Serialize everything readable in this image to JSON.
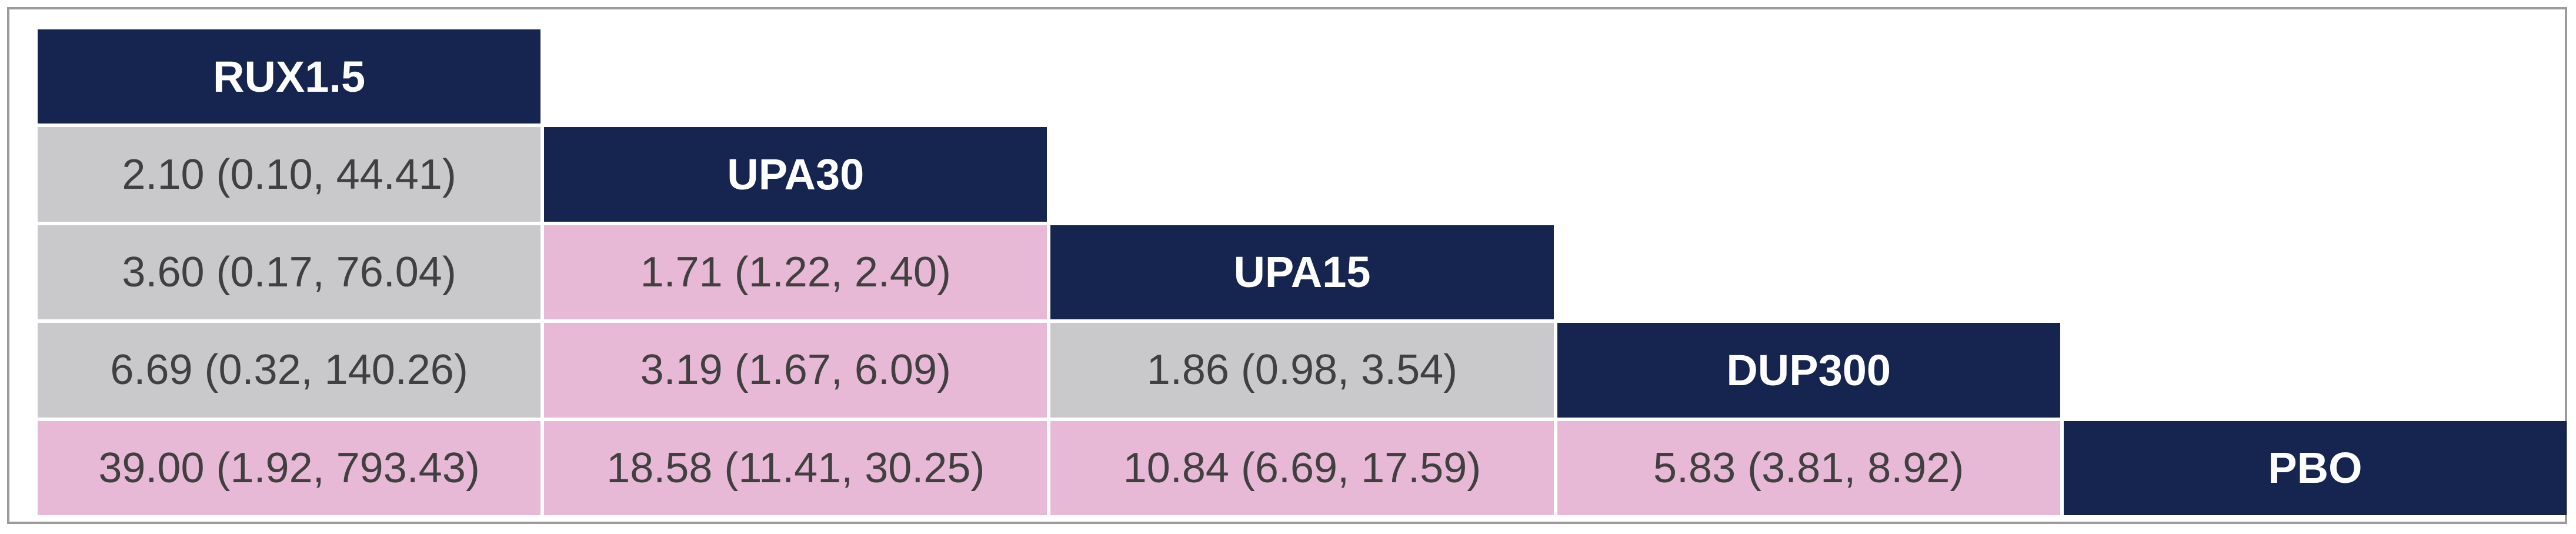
{
  "colors": {
    "header": "#15254f",
    "significant": "#e8b9d6",
    "non_significant": "#c9c9cb"
  },
  "treatments": [
    "RUX1.5",
    "UPA30",
    "UPA15",
    "DUP300",
    "PBO"
  ],
  "comparisons": [
    {
      "row": 1,
      "col": 0,
      "text": "2.10 (0.10, 44.41)",
      "significant": false
    },
    {
      "row": 2,
      "col": 0,
      "text": "3.60 (0.17, 76.04)",
      "significant": false
    },
    {
      "row": 2,
      "col": 1,
      "text": "1.71 (1.22, 2.40)",
      "significant": true
    },
    {
      "row": 3,
      "col": 0,
      "text": "6.69 (0.32, 140.26)",
      "significant": false
    },
    {
      "row": 3,
      "col": 1,
      "text": "3.19 (1.67, 6.09)",
      "significant": true
    },
    {
      "row": 3,
      "col": 2,
      "text": "1.86 (0.98, 3.54)",
      "significant": false
    },
    {
      "row": 4,
      "col": 0,
      "text": "39.00 (1.92, 793.43)",
      "significant": true
    },
    {
      "row": 4,
      "col": 1,
      "text": "18.58 (11.41, 30.25)",
      "significant": true
    },
    {
      "row": 4,
      "col": 2,
      "text": "10.84 (6.69, 17.59)",
      "significant": true
    },
    {
      "row": 4,
      "col": 3,
      "text": "5.83 (3.81, 8.92)",
      "significant": true
    }
  ]
}
